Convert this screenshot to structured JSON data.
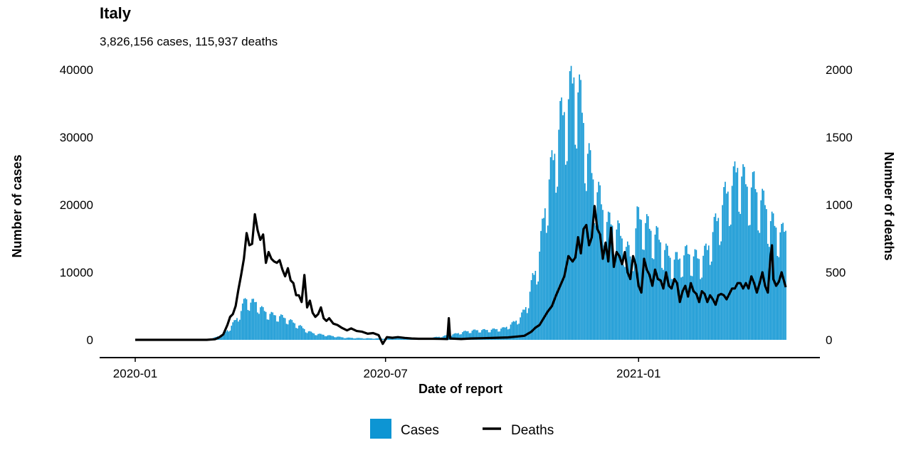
{
  "chart_data": {
    "type": "bar+line",
    "title": "Italy",
    "subtitle": "3,826,156 cases, 115,937 deaths",
    "xlabel": "Date of report",
    "ylabel_left": "Number of cases",
    "ylabel_right": "Number of deaths",
    "x_ticks": [
      "2020-01",
      "2020-07",
      "2021-01"
    ],
    "x_range": [
      "2020-01-01",
      "2021-04-18"
    ],
    "y_left_range": [
      0,
      40000
    ],
    "y_left_ticks": [
      "40000",
      "30000",
      "20000",
      "10000",
      "0"
    ],
    "y_right_range": [
      0,
      2000
    ],
    "y_right_ticks": [
      "2000",
      "1500",
      "1000",
      "500",
      "0"
    ],
    "grid": false,
    "legend_position": "bottom",
    "legend": [
      {
        "label": "Cases",
        "kind": "bar",
        "color": "#0d95d3"
      },
      {
        "label": "Deaths",
        "kind": "line",
        "color": "#000000"
      }
    ],
    "series": [
      {
        "name": "Cases",
        "axis": "left",
        "type": "bar",
        "color": "#0d95d3",
        "points": [
          [
            "2020-01-01",
            0
          ],
          [
            "2020-02-20",
            0
          ],
          [
            "2020-02-25",
            100
          ],
          [
            "2020-03-01",
            550
          ],
          [
            "2020-03-05",
            900
          ],
          [
            "2020-03-10",
            1900
          ],
          [
            "2020-03-15",
            3400
          ],
          [
            "2020-03-18",
            4500
          ],
          [
            "2020-03-21",
            6500
          ],
          [
            "2020-03-25",
            5800
          ],
          [
            "2020-03-29",
            5900
          ],
          [
            "2020-04-02",
            4800
          ],
          [
            "2020-04-06",
            4200
          ],
          [
            "2020-04-10",
            3900
          ],
          [
            "2020-04-15",
            3700
          ],
          [
            "2020-04-20",
            3300
          ],
          [
            "2020-04-25",
            2700
          ],
          [
            "2020-04-30",
            2100
          ],
          [
            "2020-05-05",
            1400
          ],
          [
            "2020-05-10",
            1000
          ],
          [
            "2020-05-15",
            850
          ],
          [
            "2020-05-20",
            700
          ],
          [
            "2020-05-25",
            550
          ],
          [
            "2020-06-01",
            350
          ],
          [
            "2020-06-10",
            280
          ],
          [
            "2020-06-20",
            230
          ],
          [
            "2020-07-01",
            200
          ],
          [
            "2020-07-10",
            220
          ],
          [
            "2020-07-20",
            250
          ],
          [
            "2020-08-01",
            300
          ],
          [
            "2020-08-10",
            500
          ],
          [
            "2020-08-20",
            900
          ],
          [
            "2020-08-28",
            1300
          ],
          [
            "2020-09-05",
            1500
          ],
          [
            "2020-09-15",
            1550
          ],
          [
            "2020-09-25",
            1800
          ],
          [
            "2020-10-01",
            2500
          ],
          [
            "2020-10-07",
            3500
          ],
          [
            "2020-10-12",
            5500
          ],
          [
            "2020-10-16",
            9500
          ],
          [
            "2020-10-20",
            12000
          ],
          [
            "2020-10-24",
            19000
          ],
          [
            "2020-10-28",
            25000
          ],
          [
            "2020-11-01",
            29000
          ],
          [
            "2020-11-05",
            34000
          ],
          [
            "2020-11-09",
            36000
          ],
          [
            "2020-11-13",
            39000
          ],
          [
            "2020-11-15",
            40900
          ],
          [
            "2020-11-20",
            37000
          ],
          [
            "2020-11-25",
            29000
          ],
          [
            "2020-11-30",
            24000
          ],
          [
            "2020-12-04",
            22000
          ],
          [
            "2020-12-08",
            18500
          ],
          [
            "2020-12-12",
            18000
          ],
          [
            "2020-12-17",
            17000
          ],
          [
            "2020-12-22",
            15000
          ],
          [
            "2020-12-27",
            12500
          ],
          [
            "2020-12-31",
            19000
          ],
          [
            "2021-01-05",
            18500
          ],
          [
            "2021-01-10",
            17000
          ],
          [
            "2021-01-15",
            16000
          ],
          [
            "2021-01-20",
            14000
          ],
          [
            "2021-01-25",
            12500
          ],
          [
            "2021-01-30",
            12500
          ],
          [
            "2021-02-05",
            13500
          ],
          [
            "2021-02-10",
            13000
          ],
          [
            "2021-02-15",
            12500
          ],
          [
            "2021-02-20",
            14000
          ],
          [
            "2021-02-25",
            17500
          ],
          [
            "2021-03-01",
            19500
          ],
          [
            "2021-03-05",
            22500
          ],
          [
            "2021-03-10",
            24000
          ],
          [
            "2021-03-14",
            26800
          ],
          [
            "2021-03-18",
            25000
          ],
          [
            "2021-03-22",
            23500
          ],
          [
            "2021-03-26",
            24000
          ],
          [
            "2021-03-30",
            22000
          ],
          [
            "2021-04-03",
            21000
          ],
          [
            "2021-04-07",
            18500
          ],
          [
            "2021-04-11",
            17500
          ],
          [
            "2021-04-15",
            16500
          ],
          [
            "2021-04-18",
            17000
          ]
        ]
      },
      {
        "name": "Deaths",
        "axis": "right",
        "type": "line",
        "color": "#000000",
        "points": [
          [
            "2020-01-01",
            0
          ],
          [
            "2020-02-22",
            0
          ],
          [
            "2020-02-28",
            5
          ],
          [
            "2020-03-02",
            18
          ],
          [
            "2020-03-05",
            40
          ],
          [
            "2020-03-08",
            110
          ],
          [
            "2020-03-10",
            170
          ],
          [
            "2020-03-12",
            190
          ],
          [
            "2020-03-14",
            250
          ],
          [
            "2020-03-16",
            370
          ],
          [
            "2020-03-18",
            480
          ],
          [
            "2020-03-20",
            600
          ],
          [
            "2020-03-22",
            790
          ],
          [
            "2020-03-24",
            700
          ],
          [
            "2020-03-26",
            710
          ],
          [
            "2020-03-28",
            930
          ],
          [
            "2020-03-30",
            810
          ],
          [
            "2020-04-01",
            740
          ],
          [
            "2020-04-03",
            780
          ],
          [
            "2020-04-05",
            570
          ],
          [
            "2020-04-07",
            650
          ],
          [
            "2020-04-09",
            600
          ],
          [
            "2020-04-11",
            580
          ],
          [
            "2020-04-13",
            570
          ],
          [
            "2020-04-15",
            590
          ],
          [
            "2020-04-17",
            520
          ],
          [
            "2020-04-19",
            470
          ],
          [
            "2020-04-21",
            530
          ],
          [
            "2020-04-23",
            440
          ],
          [
            "2020-04-25",
            420
          ],
          [
            "2020-04-27",
            330
          ],
          [
            "2020-04-29",
            330
          ],
          [
            "2020-05-01",
            280
          ],
          [
            "2020-05-03",
            480
          ],
          [
            "2020-05-05",
            240
          ],
          [
            "2020-05-07",
            290
          ],
          [
            "2020-05-09",
            200
          ],
          [
            "2020-05-11",
            170
          ],
          [
            "2020-05-13",
            190
          ],
          [
            "2020-05-15",
            240
          ],
          [
            "2020-05-17",
            160
          ],
          [
            "2020-05-19",
            140
          ],
          [
            "2020-05-21",
            160
          ],
          [
            "2020-05-24",
            120
          ],
          [
            "2020-05-27",
            110
          ],
          [
            "2020-05-30",
            90
          ],
          [
            "2020-06-03",
            70
          ],
          [
            "2020-06-06",
            85
          ],
          [
            "2020-06-10",
            65
          ],
          [
            "2020-06-14",
            60
          ],
          [
            "2020-06-18",
            45
          ],
          [
            "2020-06-22",
            50
          ],
          [
            "2020-06-26",
            35
          ],
          [
            "2020-06-29",
            -30
          ],
          [
            "2020-07-02",
            20
          ],
          [
            "2020-07-06",
            15
          ],
          [
            "2020-07-10",
            20
          ],
          [
            "2020-07-15",
            14
          ],
          [
            "2020-07-20",
            10
          ],
          [
            "2020-07-25",
            8
          ],
          [
            "2020-07-30",
            8
          ],
          [
            "2020-08-05",
            8
          ],
          [
            "2020-08-10",
            7
          ],
          [
            "2020-08-15",
            6
          ],
          [
            "2020-08-16",
            160
          ],
          [
            "2020-08-17",
            10
          ],
          [
            "2020-08-25",
            6
          ],
          [
            "2020-09-01",
            10
          ],
          [
            "2020-09-10",
            12
          ],
          [
            "2020-09-20",
            15
          ],
          [
            "2020-09-28",
            18
          ],
          [
            "2020-10-05",
            25
          ],
          [
            "2020-10-10",
            30
          ],
          [
            "2020-10-15",
            60
          ],
          [
            "2020-10-18",
            90
          ],
          [
            "2020-10-21",
            110
          ],
          [
            "2020-10-24",
            160
          ],
          [
            "2020-10-27",
            210
          ],
          [
            "2020-10-30",
            250
          ],
          [
            "2020-11-02",
            330
          ],
          [
            "2020-11-05",
            400
          ],
          [
            "2020-11-08",
            470
          ],
          [
            "2020-11-11",
            620
          ],
          [
            "2020-11-14",
            580
          ],
          [
            "2020-11-16",
            610
          ],
          [
            "2020-11-18",
            760
          ],
          [
            "2020-11-20",
            640
          ],
          [
            "2020-11-22",
            820
          ],
          [
            "2020-11-24",
            850
          ],
          [
            "2020-11-26",
            700
          ],
          [
            "2020-11-28",
            760
          ],
          [
            "2020-11-30",
            990
          ],
          [
            "2020-12-02",
            820
          ],
          [
            "2020-12-04",
            780
          ],
          [
            "2020-12-06",
            600
          ],
          [
            "2020-12-08",
            720
          ],
          [
            "2020-12-10",
            580
          ],
          [
            "2020-12-12",
            830
          ],
          [
            "2020-12-14",
            540
          ],
          [
            "2020-12-16",
            650
          ],
          [
            "2020-12-18",
            620
          ],
          [
            "2020-12-20",
            560
          ],
          [
            "2020-12-22",
            650
          ],
          [
            "2020-12-24",
            500
          ],
          [
            "2020-12-26",
            450
          ],
          [
            "2020-12-28",
            620
          ],
          [
            "2020-12-30",
            550
          ],
          [
            "2021-01-01",
            400
          ],
          [
            "2021-01-03",
            350
          ],
          [
            "2021-01-05",
            600
          ],
          [
            "2021-01-07",
            520
          ],
          [
            "2021-01-09",
            480
          ],
          [
            "2021-01-11",
            400
          ],
          [
            "2021-01-13",
            520
          ],
          [
            "2021-01-15",
            450
          ],
          [
            "2021-01-17",
            440
          ],
          [
            "2021-01-19",
            380
          ],
          [
            "2021-01-21",
            500
          ],
          [
            "2021-01-23",
            400
          ],
          [
            "2021-01-25",
            380
          ],
          [
            "2021-01-27",
            450
          ],
          [
            "2021-01-29",
            420
          ],
          [
            "2021-01-31",
            280
          ],
          [
            "2021-02-02",
            360
          ],
          [
            "2021-02-04",
            400
          ],
          [
            "2021-02-06",
            320
          ],
          [
            "2021-02-08",
            420
          ],
          [
            "2021-02-10",
            360
          ],
          [
            "2021-02-12",
            340
          ],
          [
            "2021-02-14",
            280
          ],
          [
            "2021-02-16",
            360
          ],
          [
            "2021-02-18",
            340
          ],
          [
            "2021-02-20",
            280
          ],
          [
            "2021-02-22",
            330
          ],
          [
            "2021-02-24",
            300
          ],
          [
            "2021-02-26",
            260
          ],
          [
            "2021-02-28",
            330
          ],
          [
            "2021-03-02",
            340
          ],
          [
            "2021-03-04",
            330
          ],
          [
            "2021-03-06",
            300
          ],
          [
            "2021-03-08",
            340
          ],
          [
            "2021-03-10",
            380
          ],
          [
            "2021-03-12",
            380
          ],
          [
            "2021-03-14",
            420
          ],
          [
            "2021-03-16",
            420
          ],
          [
            "2021-03-18",
            380
          ],
          [
            "2021-03-20",
            420
          ],
          [
            "2021-03-22",
            380
          ],
          [
            "2021-03-24",
            470
          ],
          [
            "2021-03-26",
            420
          ],
          [
            "2021-03-28",
            350
          ],
          [
            "2021-03-30",
            420
          ],
          [
            "2021-04-01",
            500
          ],
          [
            "2021-04-03",
            400
          ],
          [
            "2021-04-05",
            350
          ],
          [
            "2021-04-07",
            620
          ],
          [
            "2021-04-08",
            700
          ],
          [
            "2021-04-09",
            450
          ],
          [
            "2021-04-11",
            400
          ],
          [
            "2021-04-13",
            430
          ],
          [
            "2021-04-15",
            500
          ],
          [
            "2021-04-18",
            390
          ]
        ]
      }
    ]
  }
}
